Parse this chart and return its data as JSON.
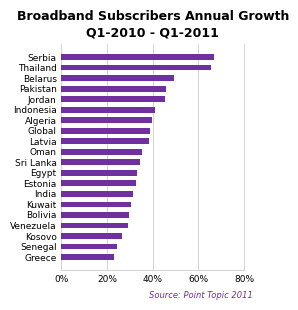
{
  "title": "Broadband Subscribers Annual Growth\nQ1-2010 - Q1-2011",
  "source": "Source: Point Topic 2011",
  "categories": [
    "Greece",
    "Senegal",
    "Kosovo",
    "Venezuela",
    "Bolivia",
    "Kuwait",
    "India",
    "Estonia",
    "Egypt",
    "Sri Lanka",
    "Oman",
    "Latvia",
    "Global",
    "Algeria",
    "Indonesia",
    "Jordan",
    "Pakistan",
    "Belarus",
    "Thailand",
    "Serbia"
  ],
  "values": [
    0.23,
    0.245,
    0.265,
    0.29,
    0.295,
    0.305,
    0.315,
    0.325,
    0.33,
    0.345,
    0.355,
    0.385,
    0.39,
    0.395,
    0.41,
    0.455,
    0.46,
    0.495,
    0.655,
    0.67
  ],
  "bar_color": "#7030A0",
  "xlim": [
    0,
    0.8
  ],
  "xticks": [
    0,
    0.2,
    0.4,
    0.6,
    0.8
  ],
  "xtick_labels": [
    "0%",
    "20%",
    "40%",
    "60%",
    "80%"
  ],
  "title_fontsize": 9.0,
  "label_fontsize": 6.5,
  "source_fontsize": 6.0,
  "fig_bg_color": "#FFFFFF",
  "plot_bg_color": "#FFFFFF",
  "grid_color": "#CCCCCC",
  "source_color": "#7030A0"
}
